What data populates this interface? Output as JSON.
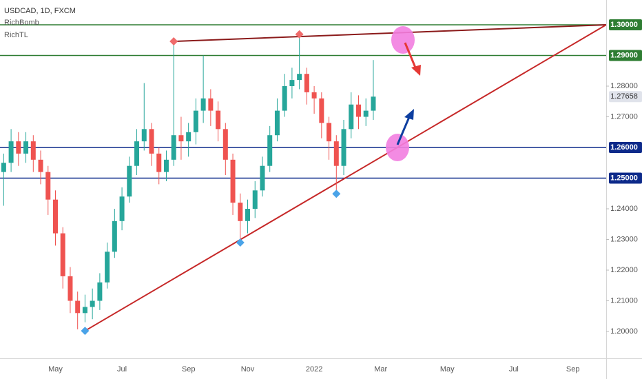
{
  "chart_data": {
    "type": "candlestick",
    "title": "USDCAD, 1D, FXCM",
    "indicators": [
      "RichBomb",
      "RichTL"
    ],
    "categories": [
      null,
      null,
      null,
      null,
      null,
      null,
      null,
      "May",
      null,
      null,
      null,
      null,
      null,
      null,
      null,
      null,
      "Jul",
      null,
      null,
      null,
      null,
      null,
      null,
      null,
      null,
      "Sep",
      null,
      null,
      null,
      null,
      null,
      null,
      null,
      "Nov",
      null,
      null,
      null,
      null,
      null,
      null,
      null,
      null,
      "2022",
      null,
      null,
      null,
      null,
      null,
      null,
      null,
      null,
      "Mar",
      null,
      null,
      null,
      null,
      null,
      null,
      null,
      null,
      "May",
      null,
      null,
      null,
      null,
      null,
      null,
      null,
      null,
      "Jul",
      null,
      null,
      null,
      null,
      null,
      null,
      null,
      "Sep",
      null,
      null,
      null,
      null
    ],
    "open": [
      1.252,
      1.255,
      1.262,
      1.258,
      1.262,
      1.256,
      1.252,
      1.243,
      1.232,
      1.218,
      1.21,
      1.206,
      1.208,
      1.21,
      1.216,
      1.226,
      1.236,
      1.244,
      1.254,
      1.262,
      1.266,
      1.258,
      1.252,
      1.256,
      1.264,
      1.262,
      1.265,
      1.272,
      1.276,
      1.272,
      1.266,
      1.256,
      1.242,
      1.236,
      1.24,
      1.246,
      1.254,
      1.264,
      1.272,
      1.28,
      1.282,
      1.284,
      1.278,
      1.276,
      1.268,
      1.262,
      1.254,
      1.266,
      1.274,
      1.27,
      1.272,
      null,
      null,
      null,
      null,
      null,
      null,
      null,
      null,
      null,
      null,
      null,
      null,
      null,
      null,
      null,
      null,
      null,
      null,
      null,
      null,
      null,
      null,
      null,
      null,
      null,
      null,
      null,
      null,
      null,
      null,
      null
    ],
    "high": [
      1.258,
      1.266,
      1.265,
      1.265,
      1.264,
      1.259,
      1.254,
      1.246,
      1.234,
      1.221,
      1.213,
      1.212,
      1.214,
      1.219,
      1.229,
      1.24,
      1.247,
      1.257,
      1.266,
      1.281,
      1.268,
      1.26,
      1.259,
      1.2946,
      1.27,
      1.268,
      1.276,
      1.29,
      1.279,
      1.275,
      1.268,
      1.258,
      1.245,
      1.243,
      1.249,
      1.257,
      1.267,
      1.276,
      1.284,
      1.286,
      1.2969,
      1.286,
      1.28,
      1.278,
      1.27,
      1.264,
      1.269,
      1.278,
      1.277,
      1.276,
      1.2885,
      null,
      null,
      null,
      null,
      null,
      null,
      null,
      null,
      null,
      null,
      null,
      null,
      null,
      null,
      null,
      null,
      null,
      null,
      null,
      null,
      null,
      null,
      null,
      null,
      null,
      null,
      null,
      null,
      null,
      null,
      null
    ],
    "low": [
      1.241,
      1.252,
      1.254,
      1.255,
      1.252,
      1.248,
      1.238,
      1.228,
      1.214,
      1.206,
      1.2007,
      1.203,
      1.204,
      1.207,
      1.214,
      1.224,
      1.233,
      1.242,
      1.251,
      1.259,
      1.254,
      1.248,
      1.249,
      1.254,
      1.256,
      1.257,
      1.261,
      1.268,
      1.267,
      1.262,
      1.251,
      1.238,
      1.229,
      1.232,
      1.237,
      1.244,
      1.252,
      1.262,
      1.27,
      1.276,
      1.279,
      1.274,
      1.271,
      1.263,
      1.256,
      1.2449,
      1.251,
      1.263,
      1.266,
      1.267,
      1.269,
      null,
      null,
      null,
      null,
      null,
      null,
      null,
      null,
      null,
      null,
      null,
      null,
      null,
      null,
      null,
      null,
      null,
      null,
      null,
      null,
      null,
      null,
      null,
      null,
      null,
      null,
      null,
      null,
      null,
      null,
      null
    ],
    "close": [
      1.255,
      1.262,
      1.258,
      1.262,
      1.256,
      1.252,
      1.243,
      1.232,
      1.218,
      1.21,
      1.206,
      1.208,
      1.21,
      1.216,
      1.226,
      1.236,
      1.244,
      1.254,
      1.262,
      1.266,
      1.258,
      1.252,
      1.256,
      1.264,
      1.262,
      1.265,
      1.272,
      1.276,
      1.272,
      1.266,
      1.256,
      1.242,
      1.236,
      1.24,
      1.246,
      1.254,
      1.264,
      1.272,
      1.28,
      1.282,
      1.284,
      1.278,
      1.276,
      1.268,
      1.262,
      1.254,
      1.266,
      1.274,
      1.27,
      1.272,
      1.27658,
      null,
      null,
      null,
      null,
      null,
      null,
      null,
      null,
      null,
      null,
      null,
      null,
      null,
      null,
      null,
      null,
      null,
      null,
      null,
      null,
      null,
      null,
      null,
      null,
      null,
      null,
      null,
      null,
      null,
      null,
      null
    ],
    "up_color": "#26a69a",
    "down_color": "#ef5350",
    "ylim": [
      1.19124,
      1.30809
    ],
    "yticks": [
      {
        "value": 1.2,
        "label": "1.20000"
      },
      {
        "value": 1.21,
        "label": "1.21000"
      },
      {
        "value": 1.22,
        "label": "1.22000"
      },
      {
        "value": 1.23,
        "label": "1.23000"
      },
      {
        "value": 1.24,
        "label": "1.24000"
      },
      {
        "value": 1.27,
        "label": "1.27000"
      },
      {
        "value": 1.28,
        "label": "1.28000"
      }
    ],
    "levels": [
      {
        "value": 1.3,
        "label": "1.30000",
        "color": "#2e7d32"
      },
      {
        "value": 1.29,
        "label": "1.29000",
        "color": "#2e7d32"
      },
      {
        "value": 1.26,
        "label": "1.26000",
        "color": "#0d2a8a"
      },
      {
        "value": 1.25,
        "label": "1.25000",
        "color": "#0d2a8a"
      }
    ],
    "last_price": {
      "value": 1.27658,
      "label": "1.27658"
    },
    "trendlines": [
      {
        "start": [
          23,
          1.2946
        ],
        "end_value": 1.3,
        "color": "#8b1a1a"
      },
      {
        "start": [
          11,
          1.2002
        ],
        "end_value": 1.3,
        "color": "#c62828"
      }
    ],
    "markers": [
      {
        "index": 23,
        "value": 1.2946,
        "color": "#ef6b6b"
      },
      {
        "index": 40,
        "value": 1.2969,
        "color": "#ef6b6b"
      },
      {
        "index": 11,
        "value": 1.2002,
        "color": "#4aa3e8"
      },
      {
        "index": 32,
        "value": 1.229,
        "color": "#4aa3e8"
      },
      {
        "index": 45,
        "value": 1.2449,
        "color": "#4aa3e8"
      }
    ]
  }
}
